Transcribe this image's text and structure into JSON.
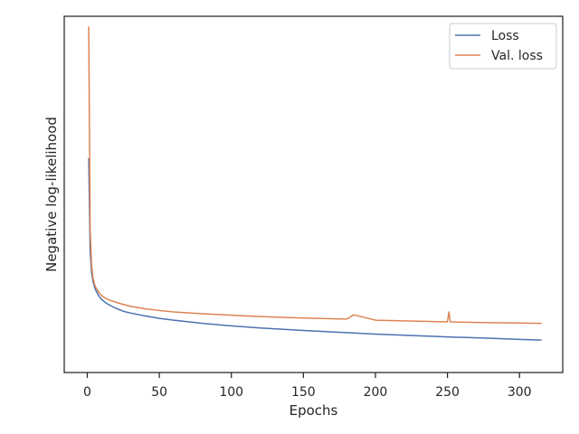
{
  "chart_data": {
    "type": "line",
    "title": "",
    "xlabel": "Epochs",
    "ylabel": "Negative log-likelihood",
    "xlim": [
      -16,
      330
    ],
    "ylim": [
      0,
      1
    ],
    "x_ticks": [
      0,
      50,
      100,
      150,
      200,
      250,
      300
    ],
    "y_ticks_labeled": false,
    "grid": false,
    "legend_position": "top-right",
    "series": [
      {
        "name": "Loss",
        "color": "#4c72b0",
        "x": [
          1,
          2,
          3,
          4,
          5,
          6,
          8,
          10,
          12,
          15,
          20,
          25,
          30,
          40,
          50,
          60,
          80,
          100,
          120,
          150,
          180,
          200,
          230,
          250,
          280,
          300,
          315
        ],
        "y": [
          0.6,
          0.34,
          0.28,
          0.255,
          0.24,
          0.23,
          0.215,
          0.205,
          0.198,
          0.19,
          0.18,
          0.172,
          0.167,
          0.159,
          0.152,
          0.147,
          0.138,
          0.131,
          0.125,
          0.118,
          0.112,
          0.108,
          0.103,
          0.1,
          0.096,
          0.093,
          0.091
        ]
      },
      {
        "name": "Val. loss",
        "color": "#dd8452",
        "x": [
          1,
          2,
          3,
          4,
          5,
          6,
          8,
          10,
          12,
          15,
          20,
          25,
          30,
          40,
          50,
          60,
          80,
          100,
          120,
          150,
          180,
          185,
          200,
          230,
          250,
          251,
          252,
          280,
          300,
          315
        ],
        "y": [
          0.97,
          0.4,
          0.3,
          0.265,
          0.248,
          0.238,
          0.225,
          0.216,
          0.21,
          0.204,
          0.197,
          0.191,
          0.186,
          0.179,
          0.174,
          0.17,
          0.165,
          0.161,
          0.157,
          0.153,
          0.15,
          0.162,
          0.147,
          0.144,
          0.142,
          0.17,
          0.142,
          0.14,
          0.139,
          0.138
        ]
      }
    ]
  }
}
